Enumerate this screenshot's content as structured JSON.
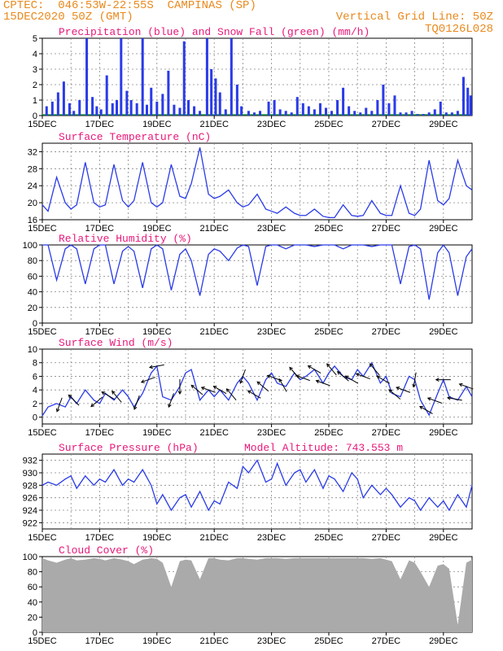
{
  "header": {
    "line1": "CPTEC:  046:53W-22:55S  CAMPINAS (SP)",
    "line2": "15DEC2020 50Z (GMT)",
    "grid_note": "Vertical Grid Line: 50Z",
    "code": "TQ0126L028"
  },
  "x_ticks": [
    "15DEC",
    "17DEC",
    "19DEC",
    "21DEC",
    "23DEC",
    "25DEC",
    "27DEC",
    "29DEC"
  ],
  "colors": {
    "series": "#2a3be8",
    "snow": "#1f9e3a",
    "cloud": "#aaaaaa",
    "title": "#e8187a",
    "header": "#e8891d"
  },
  "chart_data": [
    {
      "type": "bar",
      "title": "Precipitation (blue) and Snow Fall (green) (mm/h)",
      "ylim": [
        0,
        5
      ],
      "yticks": [
        "0",
        "1",
        "2",
        "3",
        "4",
        "5"
      ],
      "x_days": [
        15,
        30
      ],
      "x": [
        15.15,
        15.35,
        15.55,
        15.75,
        15.95,
        16.1,
        16.3,
        16.55,
        16.75,
        16.9,
        17.05,
        17.25,
        17.45,
        17.6,
        17.75,
        17.95,
        18.1,
        18.3,
        18.5,
        18.65,
        18.8,
        19.0,
        19.2,
        19.4,
        19.6,
        19.8,
        19.95,
        20.1,
        20.3,
        20.5,
        20.75,
        20.9,
        21.05,
        21.2,
        21.4,
        21.6,
        21.8,
        21.95,
        22.2,
        22.4,
        22.6,
        22.9,
        23.1,
        23.3,
        23.5,
        23.7,
        23.9,
        24.1,
        24.3,
        24.5,
        24.7,
        24.9,
        25.1,
        25.3,
        25.5,
        25.7,
        25.9,
        26.1,
        26.3,
        26.5,
        26.7,
        26.9,
        27.1,
        27.3,
        27.5,
        27.7,
        27.9,
        28.1,
        28.3,
        28.5,
        28.7,
        28.9,
        29.1,
        29.3,
        29.5,
        29.7,
        29.85,
        29.95
      ],
      "values": [
        0.6,
        0.9,
        1.5,
        2.2,
        0.8,
        0.3,
        1.0,
        5.0,
        1.2,
        0.6,
        0.4,
        2.6,
        0.8,
        1.0,
        5.0,
        1.6,
        1.0,
        0.8,
        5.0,
        0.7,
        1.8,
        0.9,
        1.4,
        2.9,
        0.7,
        0.5,
        4.8,
        1.0,
        0.6,
        0.3,
        5.0,
        3.0,
        2.4,
        1.5,
        0.4,
        5.0,
        2.0,
        0.6,
        0.3,
        0.2,
        0.3,
        0.9,
        1.0,
        0.4,
        0.3,
        0.2,
        1.2,
        0.8,
        0.6,
        0.4,
        0.8,
        0.5,
        0.3,
        1.0,
        1.8,
        0.6,
        0.3,
        0.2,
        0.5,
        0.3,
        1.0,
        2.0,
        0.8,
        1.3,
        0.2,
        0.2,
        0.3,
        0.1,
        0.1,
        0.2,
        0.4,
        0.9,
        0.2,
        0.2,
        0.3,
        2.5,
        1.8,
        1.3
      ]
    },
    {
      "type": "line",
      "title": "Surface Temperature (nC)",
      "ylim": [
        16,
        34
      ],
      "yticks": [
        "16",
        "20",
        "24",
        "28",
        "32"
      ],
      "x": [
        15.0,
        15.2,
        15.5,
        15.8,
        16.0,
        16.2,
        16.5,
        16.8,
        17.0,
        17.2,
        17.5,
        17.8,
        18.0,
        18.2,
        18.5,
        18.8,
        19.0,
        19.2,
        19.5,
        19.8,
        20.0,
        20.2,
        20.5,
        20.8,
        21.0,
        21.2,
        21.5,
        21.8,
        22.0,
        22.2,
        22.5,
        22.8,
        23.0,
        23.2,
        23.5,
        23.8,
        24.0,
        24.2,
        24.5,
        24.8,
        25.0,
        25.2,
        25.5,
        25.8,
        26.0,
        26.2,
        26.5,
        26.8,
        27.0,
        27.2,
        27.5,
        27.8,
        28.0,
        28.2,
        28.5,
        28.8,
        29.0,
        29.2,
        29.5,
        29.8,
        30.0
      ],
      "values": [
        19.5,
        18.0,
        26.0,
        20.0,
        18.5,
        19.5,
        29.5,
        20.0,
        19.0,
        19.5,
        29.0,
        20.5,
        19.0,
        20.5,
        29.5,
        20.0,
        19.0,
        20.0,
        29.0,
        21.5,
        21.0,
        24.5,
        33.0,
        22.0,
        21.0,
        21.5,
        23.0,
        20.0,
        19.0,
        19.5,
        22.0,
        18.5,
        18.0,
        17.5,
        19.0,
        17.5,
        17.0,
        17.0,
        18.5,
        16.8,
        16.5,
        16.5,
        19.5,
        17.0,
        16.8,
        17.0,
        20.5,
        17.5,
        17.0,
        17.0,
        24.0,
        17.5,
        17.0,
        18.5,
        30.0,
        20.5,
        19.5,
        21.0,
        30.0,
        24.0,
        23.0
      ]
    },
    {
      "type": "line",
      "title": "Relative Humidity (%)",
      "ylim": [
        0,
        100
      ],
      "yticks": [
        "0",
        "20",
        "40",
        "60",
        "80",
        "100"
      ],
      "x": [
        15.0,
        15.2,
        15.5,
        15.8,
        16.0,
        16.2,
        16.5,
        16.8,
        17.0,
        17.2,
        17.5,
        17.8,
        18.0,
        18.2,
        18.5,
        18.8,
        19.0,
        19.2,
        19.5,
        19.8,
        20.0,
        20.2,
        20.5,
        20.8,
        21.0,
        21.2,
        21.5,
        21.8,
        22.0,
        22.2,
        22.5,
        22.8,
        23.0,
        23.2,
        23.5,
        23.8,
        24.0,
        24.2,
        24.5,
        24.8,
        25.0,
        25.2,
        25.5,
        25.8,
        26.0,
        26.2,
        26.5,
        26.8,
        27.0,
        27.2,
        27.5,
        27.8,
        28.0,
        28.2,
        28.5,
        28.8,
        29.0,
        29.2,
        29.5,
        29.8,
        30.0
      ],
      "values": [
        100,
        100,
        55,
        95,
        100,
        95,
        50,
        95,
        100,
        100,
        50,
        92,
        98,
        92,
        45,
        95,
        100,
        95,
        42,
        88,
        95,
        80,
        35,
        88,
        95,
        92,
        80,
        96,
        100,
        98,
        48,
        98,
        100,
        100,
        95,
        100,
        100,
        100,
        98,
        100,
        100,
        100,
        95,
        100,
        100,
        100,
        98,
        100,
        100,
        100,
        50,
        98,
        100,
        95,
        30,
        90,
        100,
        90,
        35,
        85,
        95
      ]
    },
    {
      "type": "line",
      "title": "Surface Wind (m/s)",
      "ylim": [
        -1,
        10
      ],
      "yticks": [
        "0",
        "2",
        "4",
        "6",
        "8",
        "10"
      ],
      "x": [
        15.0,
        15.2,
        15.5,
        15.8,
        16.0,
        16.2,
        16.5,
        16.8,
        17.0,
        17.2,
        17.5,
        17.8,
        18.0,
        18.2,
        18.5,
        18.8,
        19.0,
        19.2,
        19.5,
        19.8,
        20.0,
        20.2,
        20.5,
        20.8,
        21.0,
        21.2,
        21.5,
        21.8,
        22.0,
        22.2,
        22.5,
        22.8,
        23.0,
        23.2,
        23.5,
        23.8,
        24.0,
        24.2,
        24.5,
        24.8,
        25.0,
        25.2,
        25.5,
        25.8,
        26.0,
        26.2,
        26.5,
        26.8,
        27.0,
        27.2,
        27.5,
        27.8,
        28.0,
        28.2,
        28.5,
        28.8,
        29.0,
        29.2,
        29.5,
        29.8,
        30.0
      ],
      "values": [
        0.2,
        1.5,
        2.0,
        1.5,
        3.0,
        2.0,
        4.0,
        2.5,
        2.0,
        3.5,
        2.5,
        4.0,
        3.0,
        1.5,
        3.5,
        6.5,
        7.5,
        3.0,
        2.5,
        4.5,
        6.5,
        7.0,
        2.5,
        4.0,
        3.0,
        4.0,
        2.5,
        5.0,
        6.0,
        5.0,
        2.5,
        5.5,
        6.5,
        5.0,
        4.5,
        6.5,
        5.5,
        6.0,
        7.0,
        5.0,
        6.5,
        7.5,
        6.0,
        5.5,
        7.0,
        6.0,
        8.0,
        5.0,
        6.0,
        3.5,
        3.0,
        6.0,
        5.5,
        2.5,
        0.3,
        3.5,
        5.5,
        3.0,
        2.5,
        4.5,
        3.0
      ],
      "arrows_x": [
        15.6,
        16.1,
        16.9,
        17.3,
        17.6,
        18.3,
        18.7,
        19.0,
        19.5,
        19.8,
        20.4,
        20.8,
        21.2,
        21.6,
        22.0,
        22.4,
        22.7,
        23.1,
        23.4,
        23.8,
        24.1,
        24.5,
        24.8,
        25.1,
        25.5,
        25.8,
        26.2,
        26.6,
        26.9,
        27.3,
        27.6,
        28.0,
        28.4,
        28.7,
        29.0,
        29.4,
        29.8
      ],
      "arrows_dir": [
        200,
        315,
        230,
        300,
        320,
        200,
        250,
        260,
        200,
        180,
        310,
        290,
        300,
        320,
        200,
        300,
        310,
        290,
        330,
        320,
        290,
        300,
        290,
        320,
        310,
        300,
        290,
        320,
        300,
        310,
        290,
        190,
        300,
        290,
        270,
        280,
        290
      ]
    },
    {
      "type": "line",
      "title": "Surface Pressure (hPa)",
      "subtitle": "Model Altitude: 743.553 m",
      "ylim": [
        921,
        933
      ],
      "yticks": [
        "922",
        "924",
        "926",
        "928",
        "930",
        "932"
      ],
      "x": [
        15.0,
        15.2,
        15.5,
        15.8,
        16.0,
        16.2,
        16.5,
        16.8,
        17.0,
        17.2,
        17.5,
        17.8,
        18.0,
        18.2,
        18.5,
        18.8,
        19.0,
        19.2,
        19.5,
        19.8,
        20.0,
        20.2,
        20.5,
        20.8,
        21.0,
        21.2,
        21.5,
        21.8,
        22.0,
        22.2,
        22.5,
        22.8,
        23.0,
        23.2,
        23.5,
        23.8,
        24.0,
        24.2,
        24.5,
        24.8,
        25.0,
        25.2,
        25.5,
        25.8,
        26.0,
        26.2,
        26.5,
        26.8,
        27.0,
        27.2,
        27.5,
        27.8,
        28.0,
        28.2,
        28.5,
        28.8,
        29.0,
        29.2,
        29.5,
        29.8,
        30.0
      ],
      "values": [
        928.0,
        928.5,
        928.0,
        929.0,
        929.5,
        927.5,
        929.5,
        928.0,
        929.0,
        928.5,
        930.5,
        928.0,
        929.0,
        928.5,
        930.5,
        928.0,
        925.0,
        926.5,
        924.0,
        926.0,
        926.5,
        924.5,
        927.0,
        924.0,
        925.5,
        925.0,
        928.5,
        927.5,
        931.0,
        930.0,
        932.0,
        928.5,
        929.0,
        931.5,
        928.0,
        930.0,
        930.5,
        928.5,
        930.5,
        927.5,
        929.5,
        929.0,
        927.0,
        930.0,
        929.0,
        926.0,
        928.0,
        926.5,
        927.5,
        926.5,
        924.5,
        926.0,
        925.5,
        924.0,
        926.0,
        924.5,
        925.5,
        924.0,
        926.5,
        924.5,
        928.0
      ]
    },
    {
      "type": "area",
      "title": "Cloud Cover (%)",
      "ylim": [
        0,
        100
      ],
      "yticks": [
        "0",
        "20",
        "40",
        "60",
        "80",
        "100"
      ],
      "x": [
        15.0,
        15.2,
        15.5,
        15.8,
        16.0,
        16.2,
        16.5,
        16.8,
        17.0,
        17.2,
        17.5,
        17.8,
        18.0,
        18.2,
        18.5,
        18.8,
        19.0,
        19.2,
        19.5,
        19.8,
        20.0,
        20.2,
        20.5,
        20.8,
        21.0,
        21.2,
        21.5,
        21.8,
        22.0,
        22.2,
        22.5,
        22.8,
        23.0,
        23.2,
        23.5,
        23.8,
        24.0,
        24.2,
        24.5,
        24.8,
        25.0,
        25.2,
        25.5,
        25.8,
        26.0,
        26.2,
        26.5,
        26.8,
        27.0,
        27.2,
        27.5,
        27.8,
        28.0,
        28.2,
        28.5,
        28.8,
        29.0,
        29.2,
        29.5,
        29.8,
        30.0
      ],
      "values": [
        98,
        95,
        92,
        96,
        98,
        95,
        96,
        98,
        97,
        95,
        98,
        96,
        94,
        90,
        96,
        98,
        97,
        92,
        60,
        94,
        96,
        95,
        70,
        98,
        98,
        96,
        95,
        98,
        98,
        97,
        96,
        98,
        98,
        98,
        97,
        98,
        98,
        98,
        98,
        98,
        98,
        98,
        98,
        98,
        98,
        98,
        97,
        98,
        96,
        94,
        70,
        95,
        92,
        80,
        60,
        88,
        90,
        84,
        10,
        92,
        96
      ]
    }
  ]
}
